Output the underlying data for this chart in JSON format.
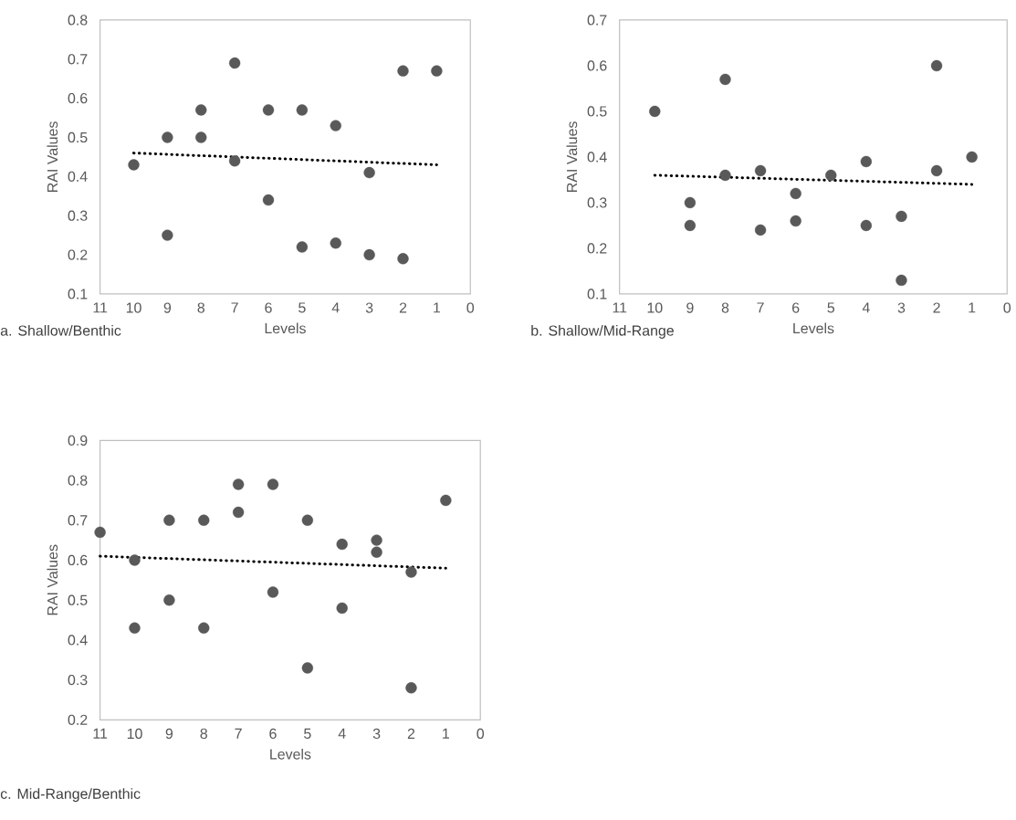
{
  "chart_data": [
    {
      "type": "scatter",
      "title": "a. Shallow/Benthic",
      "xlabel": "Levels",
      "ylabel": "RAI Values",
      "xlim": [
        11,
        0
      ],
      "ylim": [
        0.1,
        0.8
      ],
      "xticks": [
        11,
        10,
        9,
        8,
        7,
        6,
        5,
        4,
        3,
        2,
        1,
        0
      ],
      "yticks": [
        0.1,
        0.2,
        0.3,
        0.4,
        0.5,
        0.6,
        0.7,
        0.8
      ],
      "series": [
        {
          "color": "#595959",
          "marker": "circle",
          "x": [
            10,
            9,
            9,
            8,
            8,
            7,
            7,
            6,
            6,
            5,
            5,
            4,
            4,
            3,
            3,
            2,
            2,
            1
          ],
          "values": [
            0.43,
            0.5,
            0.25,
            0.57,
            0.5,
            0.69,
            0.44,
            0.57,
            0.34,
            0.57,
            0.22,
            0.53,
            0.23,
            0.41,
            0.2,
            0.67,
            0.19,
            0.67
          ]
        },
        {
          "type": "line",
          "color": "#000000",
          "line_style": "dotted",
          "x": [
            10,
            1
          ],
          "values": [
            0.46,
            0.43
          ]
        }
      ]
    },
    {
      "type": "scatter",
      "title": "b. Shallow/Mid-Range",
      "xlabel": "Levels",
      "ylabel": "RAI Values",
      "xlim": [
        11,
        0
      ],
      "ylim": [
        0.1,
        0.7
      ],
      "xticks": [
        11,
        10,
        9,
        8,
        7,
        6,
        5,
        4,
        3,
        2,
        1,
        0
      ],
      "yticks": [
        0.1,
        0.2,
        0.3,
        0.4,
        0.5,
        0.6,
        0.7
      ],
      "series": [
        {
          "color": "#595959",
          "marker": "circle",
          "x": [
            10,
            9,
            9,
            8,
            8,
            7,
            7,
            6,
            6,
            5,
            4,
            4,
            3,
            3,
            2,
            2,
            1
          ],
          "values": [
            0.5,
            0.3,
            0.25,
            0.57,
            0.36,
            0.37,
            0.24,
            0.32,
            0.26,
            0.36,
            0.39,
            0.25,
            0.27,
            0.13,
            0.6,
            0.37,
            0.4
          ]
        },
        {
          "type": "line",
          "color": "#000000",
          "line_style": "dotted",
          "x": [
            10,
            1
          ],
          "values": [
            0.36,
            0.34
          ]
        }
      ]
    },
    {
      "type": "scatter",
      "title": "c. Mid-Range/Benthic",
      "xlabel": "Levels",
      "ylabel": "RAI Values",
      "xlim": [
        11,
        0
      ],
      "ylim": [
        0.2,
        0.9
      ],
      "xticks": [
        11,
        10,
        9,
        8,
        7,
        6,
        5,
        4,
        3,
        2,
        1,
        0
      ],
      "yticks": [
        0.2,
        0.3,
        0.4,
        0.5,
        0.6,
        0.7,
        0.8,
        0.9
      ],
      "series": [
        {
          "color": "#595959",
          "marker": "circle",
          "x": [
            11,
            10,
            10,
            9,
            9,
            8,
            8,
            7,
            7,
            6,
            6,
            5,
            5,
            4,
            4,
            3,
            3,
            2,
            2,
            1
          ],
          "values": [
            0.67,
            0.6,
            0.43,
            0.7,
            0.5,
            0.7,
            0.43,
            0.79,
            0.72,
            0.79,
            0.52,
            0.7,
            0.33,
            0.64,
            0.48,
            0.65,
            0.62,
            0.57,
            0.28,
            0.75
          ]
        },
        {
          "type": "line",
          "color": "#000000",
          "line_style": "dotted",
          "x": [
            11,
            1
          ],
          "values": [
            0.61,
            0.58
          ]
        }
      ]
    }
  ]
}
